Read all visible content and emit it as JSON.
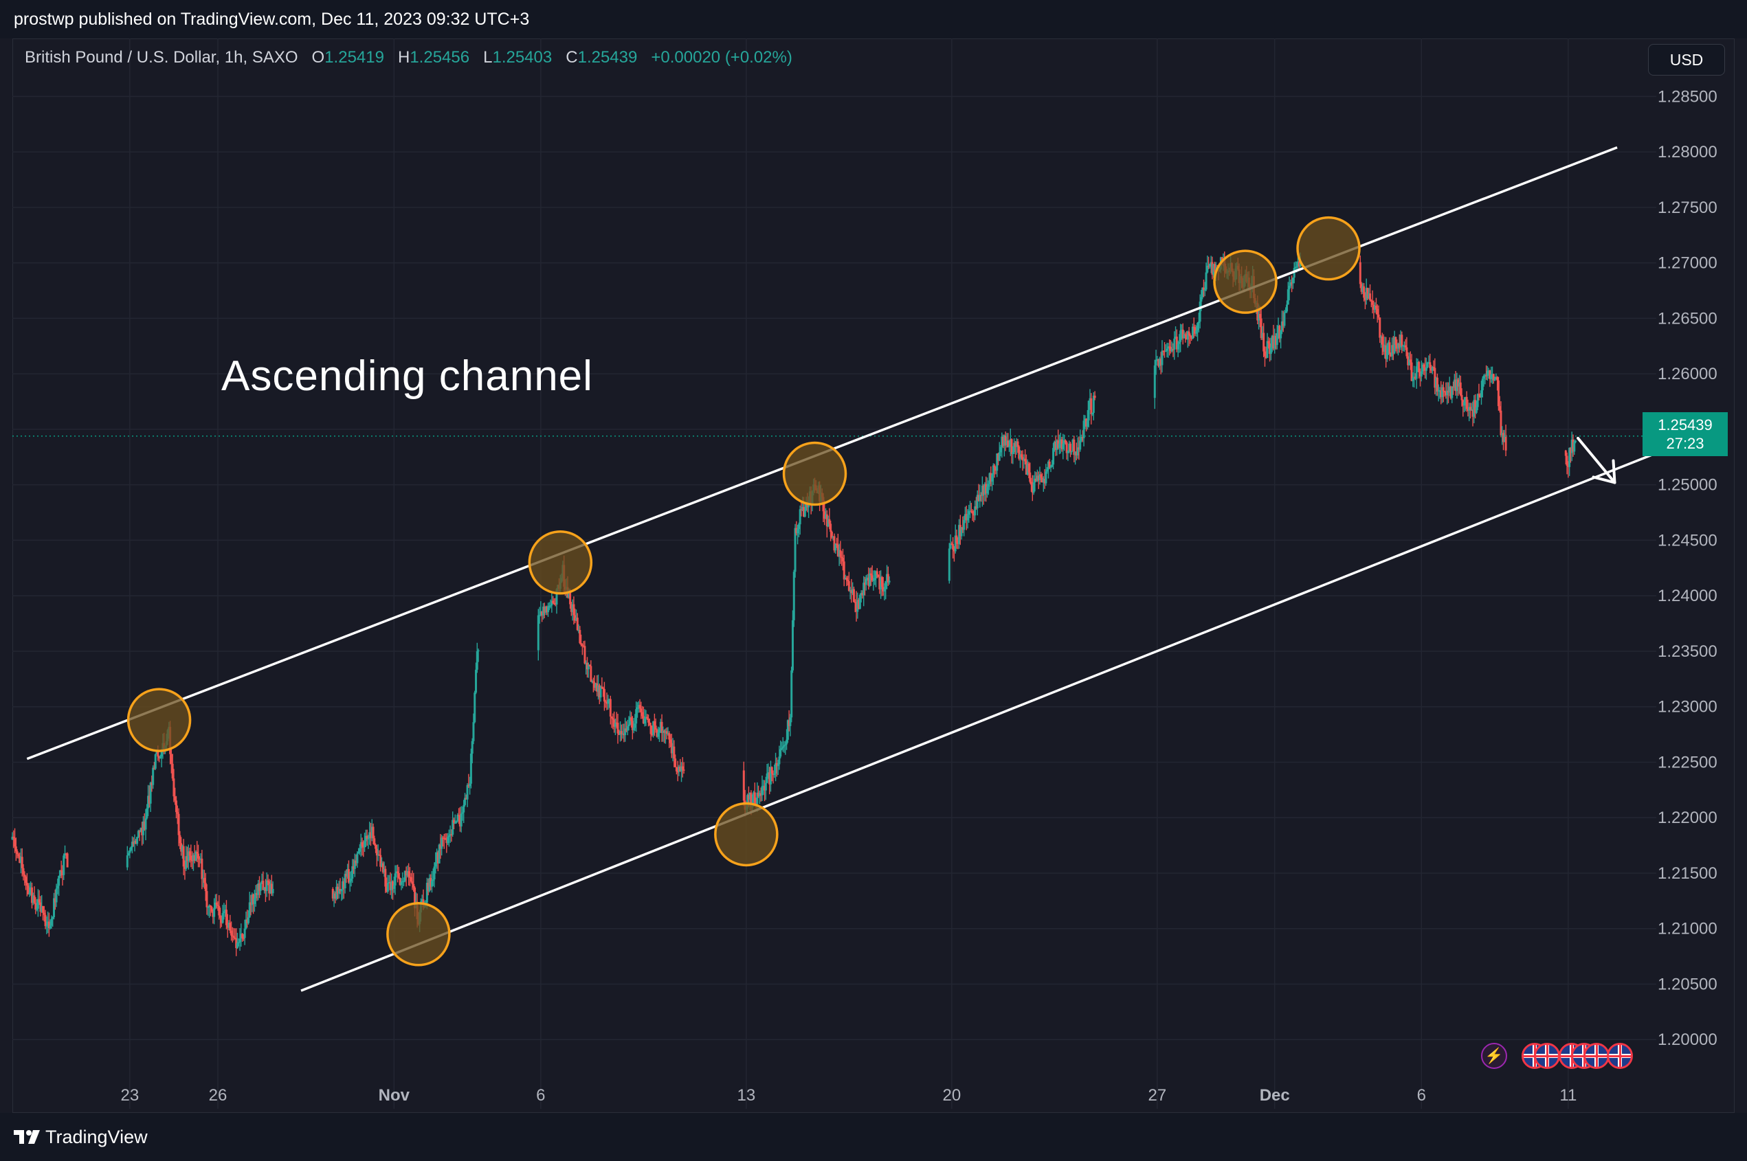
{
  "header": {
    "published": "prostwp published on TradingView.com, Dec 11, 2023 09:32 UTC+3"
  },
  "footer": {
    "brand": "TradingView",
    "logo_icon": "tradingview-logo-icon"
  },
  "legend": {
    "symbol": "British Pound / U.S. Dollar, 1h, SAXO",
    "open_label": "O",
    "open": "1.25419",
    "high_label": "H",
    "high": "1.25456",
    "low_label": "L",
    "low": "1.25403",
    "close_label": "C",
    "close": "1.25439",
    "change": "+0.00020 (+0.02%)"
  },
  "currency_button": "USD",
  "last_price": {
    "price": "1.25439",
    "countdown": "27:23"
  },
  "annotation": "Ascending channel",
  "colors": {
    "background": "#181a25",
    "up": "#26a69a",
    "down": "#ef5350",
    "channel_line": "#ffffff",
    "marker_stroke": "#f7a21b",
    "marker_fill": "#6b4f1e",
    "price_tag": "#089981",
    "grid": "#232632"
  },
  "event_icons": [
    "lightning-icon",
    "uk-flag-icon",
    "uk-flag-icon",
    "uk-flag-icon",
    "uk-flag-icon",
    "uk-flag-icon"
  ],
  "chart_data": {
    "type": "candlestick",
    "timeframe": "1h",
    "y_axis": {
      "min": 1.195,
      "max": 1.2875,
      "tick_labels": [
        "1.20000",
        "1.20500",
        "1.21000",
        "1.21500",
        "1.22000",
        "1.22500",
        "1.23000",
        "1.23500",
        "1.24000",
        "1.24500",
        "1.25000",
        "1.25500",
        "1.26000",
        "1.26500",
        "1.27000",
        "1.27500",
        "1.28000",
        "1.28500"
      ]
    },
    "x_axis": {
      "start": "2023-10-19",
      "end": "2023-12-14",
      "tick_labels": [
        {
          "date": "2023-10-23",
          "label": "23",
          "bold": false
        },
        {
          "date": "2023-10-26",
          "label": "26",
          "bold": false
        },
        {
          "date": "2023-11-01",
          "label": "Nov",
          "bold": true
        },
        {
          "date": "2023-11-06",
          "label": "6",
          "bold": false
        },
        {
          "date": "2023-11-13",
          "label": "13",
          "bold": false
        },
        {
          "date": "2023-11-20",
          "label": "20",
          "bold": false
        },
        {
          "date": "2023-11-27",
          "label": "27",
          "bold": false
        },
        {
          "date": "2023-12-01",
          "label": "Dec",
          "bold": true
        },
        {
          "date": "2023-12-06",
          "label": "6",
          "bold": false
        },
        {
          "date": "2023-12-11",
          "label": "11",
          "bold": false
        }
      ]
    },
    "grid": true,
    "price_path": [
      [
        "2023-10-19T00:00",
        1.218
      ],
      [
        "2023-10-19T12:00",
        1.214
      ],
      [
        "2023-10-20T06:00",
        1.21
      ],
      [
        "2023-10-20T18:00",
        1.216
      ],
      [
        "2023-10-22T22:00",
        1.217
      ],
      [
        "2023-10-23T12:00",
        1.219
      ],
      [
        "2023-10-23T20:00",
        1.225
      ],
      [
        "2023-10-24T08:00",
        1.228
      ],
      [
        "2023-10-24T12:00",
        1.222
      ],
      [
        "2023-10-24T20:00",
        1.216
      ],
      [
        "2023-10-25T08:00",
        1.217
      ],
      [
        "2023-10-25T16:00",
        1.212
      ],
      [
        "2023-10-26T06:00",
        1.211
      ],
      [
        "2023-10-26T16:00",
        1.208
      ],
      [
        "2023-10-27T06:00",
        1.213
      ],
      [
        "2023-10-27T16:00",
        1.214
      ],
      [
        "2023-10-29T22:00",
        1.213
      ],
      [
        "2023-10-30T12:00",
        1.215
      ],
      [
        "2023-10-31T06:00",
        1.219
      ],
      [
        "2023-10-31T18:00",
        1.214
      ],
      [
        "2023-11-01T12:00",
        1.215
      ],
      [
        "2023-11-01T20:00",
        1.211
      ],
      [
        "2023-11-02T08:00",
        1.215
      ],
      [
        "2023-11-02T16:00",
        1.218
      ],
      [
        "2023-11-03T06:00",
        1.22
      ],
      [
        "2023-11-03T14:00",
        1.223
      ],
      [
        "2023-11-03T20:00",
        1.235
      ],
      [
        "2023-11-05T23:00",
        1.238
      ],
      [
        "2023-11-06T10:00",
        1.239
      ],
      [
        "2023-11-06T18:00",
        1.242
      ],
      [
        "2023-11-07T06:00",
        1.237
      ],
      [
        "2023-11-07T16:00",
        1.233
      ],
      [
        "2023-11-08T08:00",
        1.23
      ],
      [
        "2023-11-08T18:00",
        1.227
      ],
      [
        "2023-11-09T08:00",
        1.2295
      ],
      [
        "2023-11-09T18:00",
        1.228
      ],
      [
        "2023-11-10T08:00",
        1.228
      ],
      [
        "2023-11-10T16:00",
        1.224
      ],
      [
        "2023-11-12T23:00",
        1.2215
      ],
      [
        "2023-11-13T12:00",
        1.222
      ],
      [
        "2023-11-13T20:00",
        1.224
      ],
      [
        "2023-11-14T06:00",
        1.226
      ],
      [
        "2023-11-14T12:00",
        1.229
      ],
      [
        "2023-11-14T16:00",
        1.246
      ],
      [
        "2023-11-15T00:00",
        1.248
      ],
      [
        "2023-11-15T10:00",
        1.25
      ],
      [
        "2023-11-15T20:00",
        1.246
      ],
      [
        "2023-11-16T08:00",
        1.242
      ],
      [
        "2023-11-16T18:00",
        1.239
      ],
      [
        "2023-11-17T06:00",
        1.242
      ],
      [
        "2023-11-17T16:00",
        1.241
      ],
      [
        "2023-11-19T23:00",
        1.244
      ],
      [
        "2023-11-20T12:00",
        1.247
      ],
      [
        "2023-11-21T06:00",
        1.25
      ],
      [
        "2023-11-21T18:00",
        1.254
      ],
      [
        "2023-11-22T08:00",
        1.253
      ],
      [
        "2023-11-22T18:00",
        1.25
      ],
      [
        "2023-11-23T06:00",
        1.251
      ],
      [
        "2023-11-23T14:00",
        1.254
      ],
      [
        "2023-11-24T08:00",
        1.253
      ],
      [
        "2023-11-24T16:00",
        1.257
      ],
      [
        "2023-11-27T00:00",
        1.261
      ],
      [
        "2023-11-27T16:00",
        1.263
      ],
      [
        "2023-11-28T08:00",
        1.264
      ],
      [
        "2023-11-28T16:00",
        1.269
      ],
      [
        "2023-11-29T06:00",
        1.27
      ],
      [
        "2023-11-29T16:00",
        1.269
      ],
      [
        "2023-11-30T06:00",
        1.268
      ],
      [
        "2023-11-30T16:00",
        1.262
      ],
      [
        "2023-12-01T06:00",
        1.264
      ],
      [
        "2023-12-01T16:00",
        1.27
      ],
      [
        "2023-12-03T23:00",
        1.268
      ],
      [
        "2023-12-04T10:00",
        1.266
      ],
      [
        "2023-12-04T18:00",
        1.262
      ],
      [
        "2023-12-05T08:00",
        1.263
      ],
      [
        "2023-12-05T16:00",
        1.26
      ],
      [
        "2023-12-06T06:00",
        1.261
      ],
      [
        "2023-12-06T16:00",
        1.258
      ],
      [
        "2023-12-07T06:00",
        1.259
      ],
      [
        "2023-12-07T16:00",
        1.256
      ],
      [
        "2023-12-08T06:00",
        1.26
      ],
      [
        "2023-12-08T14:00",
        1.259
      ],
      [
        "2023-12-08T18:00",
        1.254
      ],
      [
        "2023-12-10T23:00",
        1.252
      ],
      [
        "2023-12-11T06:00",
        1.2544
      ]
    ],
    "last_price": 1.25439,
    "channel_lines": [
      {
        "name": "upper",
        "from": [
          "2023-10-19T12:00",
          1.2253
        ],
        "to": [
          "2023-12-12T16:00",
          1.2804
        ]
      },
      {
        "name": "lower",
        "from": [
          "2023-10-28T20:00",
          1.2044
        ],
        "to": [
          "2023-12-14T01:00",
          1.2529
        ]
      }
    ],
    "touch_points": [
      [
        "2023-10-24T00:00",
        1.2288
      ],
      [
        "2023-11-01T20:00",
        1.2095
      ],
      [
        "2023-11-06T16:00",
        1.243
      ],
      [
        "2023-11-13T00:00",
        1.2185
      ],
      [
        "2023-11-15T08:00",
        1.251
      ],
      [
        "2023-11-30T00:00",
        1.2683
      ],
      [
        "2023-12-02T20:00",
        1.2713
      ]
    ],
    "projection_arrow": {
      "from": [
        "2023-12-11T08:00",
        1.2542
      ],
      "to": [
        "2023-12-12T14:00",
        1.2502
      ]
    },
    "annotations": [
      "Ascending channel"
    ]
  }
}
